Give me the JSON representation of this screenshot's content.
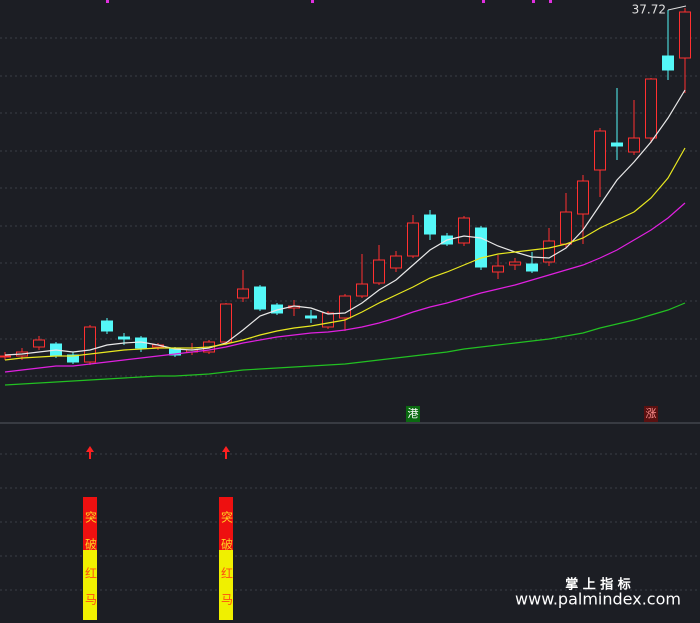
{
  "chart_data": {
    "type": "candlestick",
    "ylim": [
      17.12,
      38.12
    ],
    "up_color": "#ff3030",
    "down_color": "#54f8f8",
    "ohlc": [
      [
        20.27,
        20.52,
        20.12,
        20.32
      ],
      [
        20.32,
        20.72,
        20.12,
        20.52
      ],
      [
        20.77,
        21.32,
        20.62,
        21.12
      ],
      [
        20.92,
        21.02,
        20.22,
        20.32
      ],
      [
        20.37,
        20.52,
        19.92,
        20.02
      ],
      [
        20.02,
        21.87,
        19.87,
        21.77
      ],
      [
        22.07,
        22.22,
        21.42,
        21.57
      ],
      [
        21.27,
        21.47,
        20.87,
        21.17
      ],
      [
        21.22,
        21.32,
        20.52,
        20.72
      ],
      [
        20.77,
        20.97,
        20.62,
        20.87
      ],
      [
        20.67,
        20.77,
        20.27,
        20.37
      ],
      [
        20.52,
        20.97,
        20.37,
        20.62
      ],
      [
        20.52,
        21.12,
        20.42,
        21.02
      ],
      [
        21.02,
        22.97,
        20.87,
        22.92
      ],
      [
        23.22,
        24.62,
        23.02,
        23.67
      ],
      [
        23.77,
        23.87,
        22.57,
        22.67
      ],
      [
        22.87,
        22.97,
        22.37,
        22.47
      ],
      [
        22.72,
        23.12,
        22.32,
        22.82
      ],
      [
        22.32,
        22.62,
        21.97,
        22.22
      ],
      [
        21.77,
        22.57,
        21.67,
        22.47
      ],
      [
        22.22,
        23.42,
        21.57,
        23.32
      ],
      [
        23.32,
        25.42,
        23.22,
        23.92
      ],
      [
        23.97,
        25.87,
        23.87,
        25.12
      ],
      [
        24.72,
        25.57,
        24.52,
        25.32
      ],
      [
        25.32,
        27.37,
        25.22,
        26.97
      ],
      [
        27.37,
        27.62,
        26.12,
        26.42
      ],
      [
        26.32,
        26.47,
        25.82,
        25.92
      ],
      [
        25.97,
        27.32,
        25.82,
        27.22
      ],
      [
        26.72,
        26.82,
        24.62,
        24.77
      ],
      [
        24.52,
        25.37,
        24.17,
        24.82
      ],
      [
        24.87,
        25.22,
        24.62,
        25.02
      ],
      [
        24.92,
        25.52,
        24.47,
        24.57
      ],
      [
        25.02,
        26.72,
        24.82,
        26.07
      ],
      [
        25.92,
        28.47,
        25.72,
        27.52
      ],
      [
        27.42,
        29.37,
        25.92,
        29.07
      ],
      [
        29.62,
        31.72,
        28.27,
        31.57
      ],
      [
        30.97,
        33.72,
        30.12,
        30.82
      ],
      [
        30.52,
        33.12,
        30.37,
        31.22
      ],
      [
        31.22,
        34.22,
        30.97,
        34.17
      ],
      [
        35.32,
        37.62,
        34.12,
        34.62
      ],
      [
        35.22,
        37.72,
        33.47,
        37.52
      ]
    ],
    "lines": [
      {
        "color": "#e8e8e8",
        "values": [
          20.37,
          20.42,
          20.52,
          20.62,
          20.52,
          20.62,
          20.87,
          20.97,
          21.02,
          20.87,
          20.67,
          20.62,
          20.72,
          20.97,
          21.62,
          22.32,
          22.62,
          22.82,
          22.72,
          22.42,
          22.47,
          22.97,
          23.62,
          24.12,
          24.87,
          25.62,
          26.12,
          26.32,
          26.22,
          25.82,
          25.52,
          25.27,
          25.22,
          25.72,
          26.62,
          27.87,
          29.12,
          30.02,
          31.02,
          32.22,
          33.62
        ]
      },
      {
        "color": "#e8e820",
        "values": [
          20.12,
          20.22,
          20.27,
          20.32,
          20.32,
          20.42,
          20.52,
          20.62,
          20.67,
          20.72,
          20.72,
          20.72,
          20.77,
          20.92,
          21.12,
          21.37,
          21.57,
          21.72,
          21.82,
          21.97,
          22.12,
          22.52,
          22.97,
          23.37,
          23.77,
          24.22,
          24.52,
          24.87,
          25.22,
          25.42,
          25.52,
          25.62,
          25.72,
          25.92,
          26.22,
          26.72,
          27.12,
          27.52,
          28.22,
          29.22,
          30.72
        ]
      },
      {
        "color": "#e020e0",
        "values": [
          19.52,
          19.62,
          19.72,
          19.82,
          19.82,
          19.92,
          20.02,
          20.12,
          20.22,
          20.32,
          20.42,
          20.52,
          20.62,
          20.77,
          20.97,
          21.12,
          21.27,
          21.37,
          21.47,
          21.52,
          21.62,
          21.77,
          21.97,
          22.22,
          22.52,
          22.77,
          22.97,
          23.22,
          23.47,
          23.67,
          23.87,
          24.12,
          24.37,
          24.62,
          24.87,
          25.22,
          25.62,
          26.12,
          26.62,
          27.22,
          27.97
        ]
      },
      {
        "color": "#22c022",
        "values": [
          18.87,
          18.92,
          18.97,
          19.02,
          19.07,
          19.12,
          19.17,
          19.22,
          19.27,
          19.32,
          19.32,
          19.37,
          19.42,
          19.52,
          19.62,
          19.67,
          19.72,
          19.77,
          19.82,
          19.87,
          19.92,
          20.02,
          20.12,
          20.22,
          20.32,
          20.42,
          20.52,
          20.67,
          20.77,
          20.87,
          20.97,
          21.07,
          21.17,
          21.32,
          21.47,
          21.72,
          21.92,
          22.12,
          22.37,
          22.62,
          22.97
        ]
      }
    ],
    "annotation": "37.72",
    "flags": [
      null,
      null,
      null,
      null,
      null,
      null,
      null,
      null,
      null,
      null,
      null,
      null,
      null,
      null,
      null,
      null,
      null,
      null,
      null,
      null,
      null,
      null,
      null,
      null,
      "港",
      null,
      null,
      null,
      null,
      null,
      null,
      null,
      null,
      null,
      null,
      null,
      null,
      null,
      "涨",
      null,
      null
    ],
    "signals": [
      null,
      null,
      null,
      null,
      null,
      [
        "突",
        "破",
        "红",
        "马"
      ],
      null,
      null,
      null,
      null,
      null,
      null,
      null,
      [
        "突",
        "破",
        "红",
        "马"
      ],
      null,
      null,
      null,
      null,
      null,
      null,
      null,
      null,
      null,
      null,
      null,
      null,
      null,
      null,
      null,
      null,
      null,
      null,
      null,
      null,
      null,
      null,
      null,
      null,
      null,
      null,
      null
    ]
  },
  "watermark": {
    "title": "掌 上 指 标",
    "url": "www.palmindex.com"
  }
}
